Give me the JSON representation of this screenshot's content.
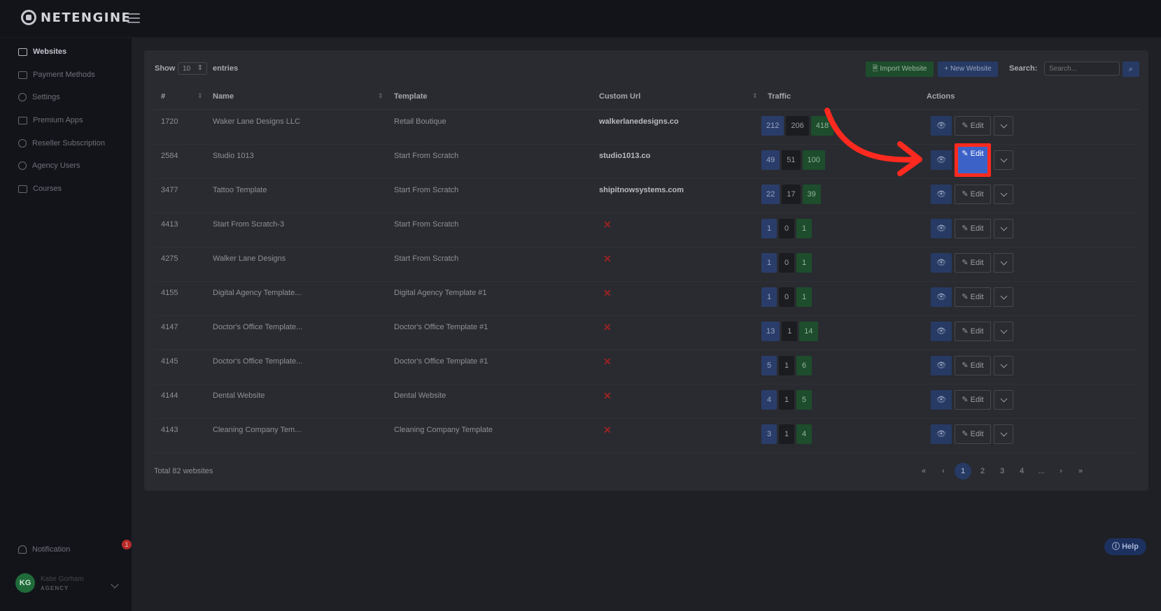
{
  "brand": {
    "name": "NETENGINE"
  },
  "sidebar": {
    "items": [
      {
        "label": "Websites",
        "icon": "browser-icon",
        "active": true
      },
      {
        "label": "Payment Methods",
        "icon": "credit-card-icon",
        "active": false
      },
      {
        "label": "Settings",
        "icon": "gear-icon",
        "active": false
      },
      {
        "label": "Premium Apps",
        "icon": "apps-icon",
        "active": false
      },
      {
        "label": "Reseller Subscription",
        "icon": "user-plus-icon",
        "active": false
      },
      {
        "label": "Agency Users",
        "icon": "users-icon",
        "active": false
      },
      {
        "label": "Courses",
        "icon": "video-icon",
        "active": false
      }
    ],
    "notification": {
      "label": "Notification",
      "count": "1"
    },
    "user": {
      "initials": "KG",
      "name": "Katie Gorham",
      "role": "AGENCY"
    }
  },
  "toolbar": {
    "show_label": "Show",
    "entries_value": "10",
    "entries_label": "entries",
    "import_label": "Import Website",
    "new_label": "+ New Website",
    "search_label": "Search:",
    "search_placeholder": "Search..."
  },
  "table": {
    "columns": [
      "#",
      "Name",
      "Template",
      "Custom Url",
      "Traffic",
      "Actions"
    ],
    "edit_label": "Edit",
    "rows": [
      {
        "id": "1720",
        "name": "Waker Lane Designs LLC",
        "template": "Retail Boutique",
        "url": "walkerlanedesigns.co",
        "traffic": [
          "212",
          "206",
          "418"
        ]
      },
      {
        "id": "2584",
        "name": "Studio 1013",
        "template": "Start From Scratch",
        "url": "studio1013.co",
        "traffic": [
          "49",
          "51",
          "100"
        ]
      },
      {
        "id": "3477",
        "name": "Tattoo Template",
        "template": "Start From Scratch",
        "url": "shipitnowsystems.com",
        "traffic": [
          "22",
          "17",
          "39"
        ]
      },
      {
        "id": "4413",
        "name": "Start From Scratch-3",
        "template": "Start From Scratch",
        "url": "",
        "traffic": [
          "1",
          "0",
          "1"
        ]
      },
      {
        "id": "4275",
        "name": "Walker Lane Designs",
        "template": "Start From Scratch",
        "url": "",
        "traffic": [
          "1",
          "0",
          "1"
        ]
      },
      {
        "id": "4155",
        "name": "Digital Agency Template...",
        "template": "Digital Agency Template #1",
        "url": "",
        "traffic": [
          "1",
          "0",
          "1"
        ]
      },
      {
        "id": "4147",
        "name": "Doctor's Office Template...",
        "template": "Doctor's Office Template #1",
        "url": "",
        "traffic": [
          "13",
          "1",
          "14"
        ]
      },
      {
        "id": "4145",
        "name": "Doctor's Office Template...",
        "template": "Doctor's Office Template #1",
        "url": "",
        "traffic": [
          "5",
          "1",
          "6"
        ]
      },
      {
        "id": "4144",
        "name": "Dental Website",
        "template": "Dental Website",
        "url": "",
        "traffic": [
          "4",
          "1",
          "5"
        ]
      },
      {
        "id": "4143",
        "name": "Cleaning Company Tem...",
        "template": "Cleaning Company Template",
        "url": "",
        "traffic": [
          "3",
          "1",
          "4"
        ]
      }
    ],
    "total": "Total 82 websites"
  },
  "pagination": {
    "items": [
      "«",
      "‹",
      "1",
      "2",
      "3",
      "4",
      "...",
      "›",
      "»"
    ],
    "current": "1"
  },
  "help_label": "Help",
  "annotation": {
    "highlight_color": "#ff2a1f",
    "target": "studio1013-edit-button"
  }
}
